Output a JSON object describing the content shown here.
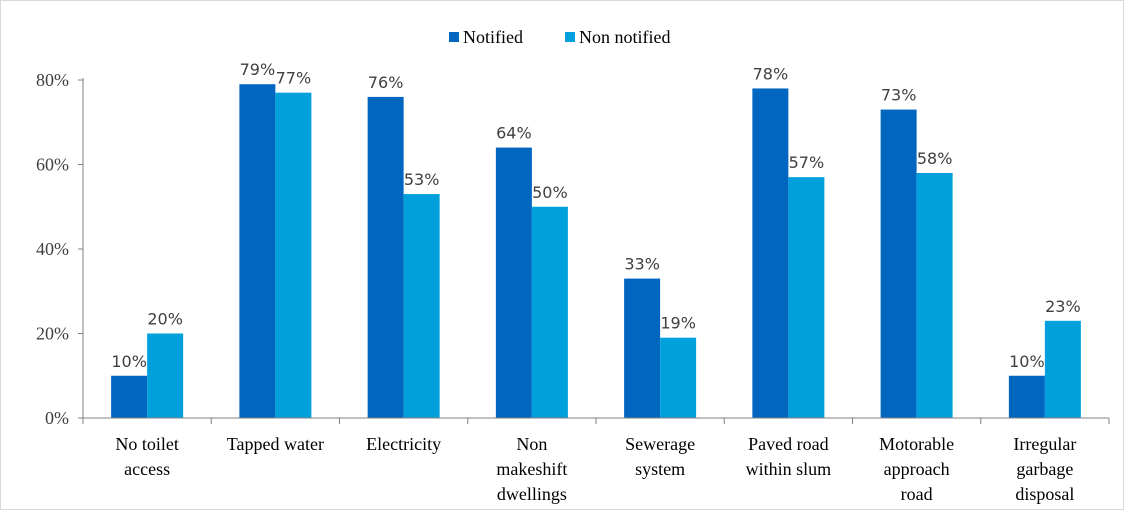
{
  "chart_data": {
    "type": "bar",
    "categories": [
      [
        "No toilet",
        "access"
      ],
      [
        "Tapped water"
      ],
      [
        "Electricity"
      ],
      [
        "Non",
        "makeshift",
        "dwellings"
      ],
      [
        "Sewerage",
        "system"
      ],
      [
        "Paved road",
        "within slum"
      ],
      [
        "Motorable",
        "approach",
        "road"
      ],
      [
        "Irregular",
        "garbage",
        "disposal"
      ]
    ],
    "series": [
      {
        "name": "Notified",
        "color": "#0066C0",
        "values": [
          10,
          79,
          76,
          64,
          33,
          78,
          73,
          10
        ],
        "labels": [
          "10%",
          "79%",
          "76%",
          "64%",
          "33%",
          "78%",
          "73%",
          "10%"
        ]
      },
      {
        "name": "Non notified",
        "color": "#00A0DC",
        "values": [
          20,
          77,
          53,
          50,
          19,
          57,
          58,
          23
        ],
        "labels": [
          "20%",
          "77%",
          "53%",
          "50%",
          "19%",
          "57%",
          "58%",
          "23%"
        ]
      }
    ],
    "ylim": [
      0,
      80
    ],
    "yticks": [
      0,
      20,
      40,
      60,
      80
    ],
    "ytick_labels": [
      "0%",
      "20%",
      "40%",
      "60%",
      "80%"
    ],
    "legend_position": "top-center",
    "grid": false
  }
}
